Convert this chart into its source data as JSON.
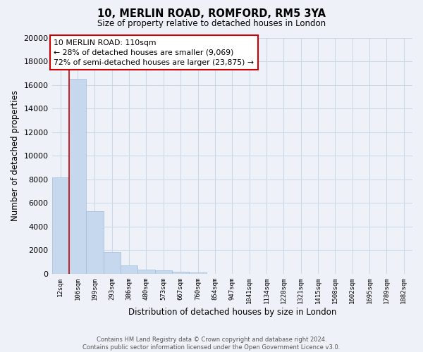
{
  "title": "10, MERLIN ROAD, ROMFORD, RM5 3YA",
  "subtitle": "Size of property relative to detached houses in London",
  "xlabel": "Distribution of detached houses by size in London",
  "ylabel": "Number of detached properties",
  "bar_color": "#c5d8ee",
  "bar_edge_color": "#a0bcda",
  "categories": [
    "12sqm",
    "106sqm",
    "199sqm",
    "293sqm",
    "386sqm",
    "480sqm",
    "573sqm",
    "667sqm",
    "760sqm",
    "854sqm",
    "947sqm",
    "1041sqm",
    "1134sqm",
    "1228sqm",
    "1321sqm",
    "1415sqm",
    "1508sqm",
    "1602sqm",
    "1695sqm",
    "1789sqm",
    "1882sqm"
  ],
  "values": [
    8150,
    16550,
    5300,
    1850,
    700,
    350,
    270,
    160,
    120,
    0,
    0,
    0,
    0,
    0,
    0,
    0,
    0,
    0,
    0,
    0,
    0
  ],
  "ylim": [
    0,
    20000
  ],
  "yticks": [
    0,
    2000,
    4000,
    6000,
    8000,
    10000,
    12000,
    14000,
    16000,
    18000,
    20000
  ],
  "property_size": "110sqm",
  "property_name": "10 MERLIN ROAD",
  "vline_position": 1.0,
  "pct_smaller": "28%",
  "pct_smaller_count": "9,069",
  "pct_larger": "72%",
  "pct_larger_count": "23,875",
  "annotation_box_color": "#ffffff",
  "annotation_border_color": "#cc0000",
  "vline_color": "#cc0000",
  "grid_color": "#ccd8e8",
  "background_color": "#eef2f8",
  "footer_line1": "Contains HM Land Registry data © Crown copyright and database right 2024.",
  "footer_line2": "Contains public sector information licensed under the Open Government Licence v3.0."
}
